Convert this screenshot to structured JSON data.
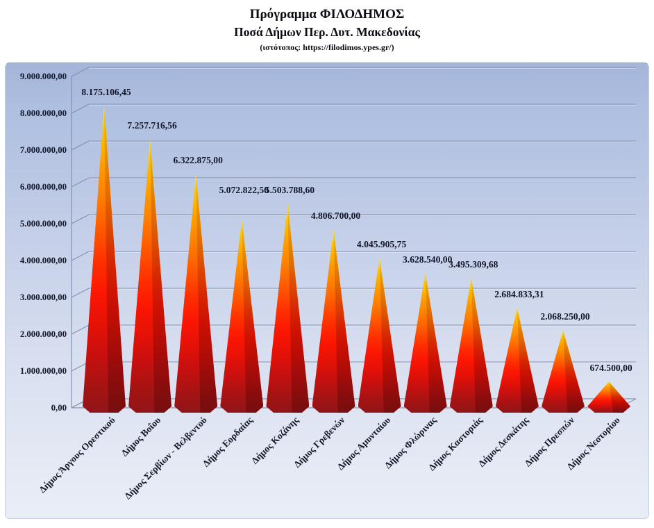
{
  "title": {
    "line1": "Πρόγραμμα ΦΙΛΟΔΗΜΟΣ",
    "line2": "Ποσά Δήμων Περ. Δυτ. Μακεδονίας",
    "line3": "(ιστότοπος: https://filodimos.ypes.gr/)"
  },
  "chart_data": {
    "type": "bar",
    "shape": "3d-cone",
    "title": "Πρόγραμμα ΦΙΛΟΔΗΜΟΣ",
    "subtitle": "Ποσά Δήμων Περ. Δυτ. Μακεδονίας",
    "source_note": "(ιστότοπος: https://filodimos.ypes.gr/)",
    "categories": [
      "Δήμος Άργους Ορεστικού",
      "Δήμος Βοΐου",
      "Δήμος Σερβίων - Βελβεντού",
      "Δήμος Εορδαίας",
      "Δήμος Κοζάνης",
      "Δήμος Γρεβενών",
      "Δήμος Αμυνταίου",
      "Δήμος Φλώρινας",
      "Δήμος Καστοριάς",
      "Δήμος Δεσκάτης",
      "Δήμος Πρεσπών",
      "Δήμος Νεστορίου"
    ],
    "values": [
      8175106.45,
      7257716.56,
      6322875.0,
      5072822.5,
      5503788.6,
      4806700.0,
      4045905.75,
      3628540.0,
      3495309.68,
      2684833.31,
      2068250.0,
      674500.0
    ],
    "value_labels": [
      "8.175.106,45",
      "7.257.716,56",
      "6.322.875,00",
      "5.072.822,50",
      "5.503.788,60",
      "4.806.700,00",
      "4.045.905,75",
      "3.628.540,00",
      "3.495.309,68",
      "2.684.833,31",
      "2.068.250,00",
      "674.500,00"
    ],
    "y_ticks": [
      "0,00",
      "1.000.000,00",
      "2.000.000,00",
      "3.000.000,00",
      "4.000.000,00",
      "5.000.000,00",
      "6.000.000,00",
      "7.000.000,00",
      "8.000.000,00",
      "9.000.000,00"
    ],
    "ylim": [
      0,
      9000000
    ],
    "y_step": 1000000,
    "xlabel": "",
    "ylabel": "",
    "grid": true,
    "legend": false,
    "colors": {
      "cone_apex": "#ffdf2e",
      "cone_mid": "#ff7d00",
      "cone_base": "#901518",
      "panel_top": "#a4b5da",
      "panel_bottom": "#e9edf6",
      "gridline": "#7f8db0",
      "floor_fill": "#e1e6f0",
      "text": "#14172b"
    }
  }
}
